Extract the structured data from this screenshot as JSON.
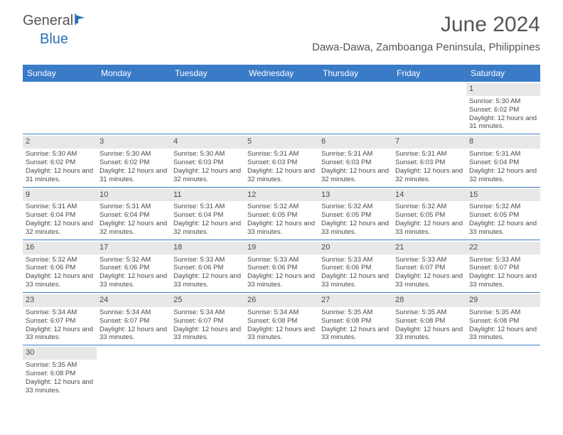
{
  "logo": {
    "text1": "General",
    "text2": "Blue"
  },
  "title": "June 2024",
  "location": "Dawa-Dawa, Zamboanga Peninsula, Philippines",
  "colors": {
    "header_bg": "#3a7bc8",
    "header_fg": "#ffffff",
    "daynum_bg": "#e8e8e8",
    "row_border": "#3a7bc8",
    "text": "#4a4a4a",
    "title": "#555555"
  },
  "day_names": [
    "Sunday",
    "Monday",
    "Tuesday",
    "Wednesday",
    "Thursday",
    "Friday",
    "Saturday"
  ],
  "weeks": [
    [
      {
        "n": "",
        "blank": true
      },
      {
        "n": "",
        "blank": true
      },
      {
        "n": "",
        "blank": true
      },
      {
        "n": "",
        "blank": true
      },
      {
        "n": "",
        "blank": true
      },
      {
        "n": "",
        "blank": true
      },
      {
        "n": "1",
        "sr": "5:30 AM",
        "ss": "6:02 PM",
        "dl": "12 hours and 31 minutes."
      }
    ],
    [
      {
        "n": "2",
        "sr": "5:30 AM",
        "ss": "6:02 PM",
        "dl": "12 hours and 31 minutes."
      },
      {
        "n": "3",
        "sr": "5:30 AM",
        "ss": "6:02 PM",
        "dl": "12 hours and 31 minutes."
      },
      {
        "n": "4",
        "sr": "5:30 AM",
        "ss": "6:03 PM",
        "dl": "12 hours and 32 minutes."
      },
      {
        "n": "5",
        "sr": "5:31 AM",
        "ss": "6:03 PM",
        "dl": "12 hours and 32 minutes."
      },
      {
        "n": "6",
        "sr": "5:31 AM",
        "ss": "6:03 PM",
        "dl": "12 hours and 32 minutes."
      },
      {
        "n": "7",
        "sr": "5:31 AM",
        "ss": "6:03 PM",
        "dl": "12 hours and 32 minutes."
      },
      {
        "n": "8",
        "sr": "5:31 AM",
        "ss": "6:04 PM",
        "dl": "12 hours and 32 minutes."
      }
    ],
    [
      {
        "n": "9",
        "sr": "5:31 AM",
        "ss": "6:04 PM",
        "dl": "12 hours and 32 minutes."
      },
      {
        "n": "10",
        "sr": "5:31 AM",
        "ss": "6:04 PM",
        "dl": "12 hours and 32 minutes."
      },
      {
        "n": "11",
        "sr": "5:31 AM",
        "ss": "6:04 PM",
        "dl": "12 hours and 32 minutes."
      },
      {
        "n": "12",
        "sr": "5:32 AM",
        "ss": "6:05 PM",
        "dl": "12 hours and 33 minutes."
      },
      {
        "n": "13",
        "sr": "5:32 AM",
        "ss": "6:05 PM",
        "dl": "12 hours and 33 minutes."
      },
      {
        "n": "14",
        "sr": "5:32 AM",
        "ss": "6:05 PM",
        "dl": "12 hours and 33 minutes."
      },
      {
        "n": "15",
        "sr": "5:32 AM",
        "ss": "6:05 PM",
        "dl": "12 hours and 33 minutes."
      }
    ],
    [
      {
        "n": "16",
        "sr": "5:32 AM",
        "ss": "6:06 PM",
        "dl": "12 hours and 33 minutes."
      },
      {
        "n": "17",
        "sr": "5:32 AM",
        "ss": "6:06 PM",
        "dl": "12 hours and 33 minutes."
      },
      {
        "n": "18",
        "sr": "5:33 AM",
        "ss": "6:06 PM",
        "dl": "12 hours and 33 minutes."
      },
      {
        "n": "19",
        "sr": "5:33 AM",
        "ss": "6:06 PM",
        "dl": "12 hours and 33 minutes."
      },
      {
        "n": "20",
        "sr": "5:33 AM",
        "ss": "6:06 PM",
        "dl": "12 hours and 33 minutes."
      },
      {
        "n": "21",
        "sr": "5:33 AM",
        "ss": "6:07 PM",
        "dl": "12 hours and 33 minutes."
      },
      {
        "n": "22",
        "sr": "5:33 AM",
        "ss": "6:07 PM",
        "dl": "12 hours and 33 minutes."
      }
    ],
    [
      {
        "n": "23",
        "sr": "5:34 AM",
        "ss": "6:07 PM",
        "dl": "12 hours and 33 minutes."
      },
      {
        "n": "24",
        "sr": "5:34 AM",
        "ss": "6:07 PM",
        "dl": "12 hours and 33 minutes."
      },
      {
        "n": "25",
        "sr": "5:34 AM",
        "ss": "6:07 PM",
        "dl": "12 hours and 33 minutes."
      },
      {
        "n": "26",
        "sr": "5:34 AM",
        "ss": "6:08 PM",
        "dl": "12 hours and 33 minutes."
      },
      {
        "n": "27",
        "sr": "5:35 AM",
        "ss": "6:08 PM",
        "dl": "12 hours and 33 minutes."
      },
      {
        "n": "28",
        "sr": "5:35 AM",
        "ss": "6:08 PM",
        "dl": "12 hours and 33 minutes."
      },
      {
        "n": "29",
        "sr": "5:35 AM",
        "ss": "6:08 PM",
        "dl": "12 hours and 33 minutes."
      }
    ],
    [
      {
        "n": "30",
        "sr": "5:35 AM",
        "ss": "6:08 PM",
        "dl": "12 hours and 33 minutes."
      },
      {
        "n": "",
        "blank": true
      },
      {
        "n": "",
        "blank": true
      },
      {
        "n": "",
        "blank": true
      },
      {
        "n": "",
        "blank": true
      },
      {
        "n": "",
        "blank": true
      },
      {
        "n": "",
        "blank": true
      }
    ]
  ],
  "labels": {
    "sunrise": "Sunrise:",
    "sunset": "Sunset:",
    "daylight": "Daylight:"
  }
}
